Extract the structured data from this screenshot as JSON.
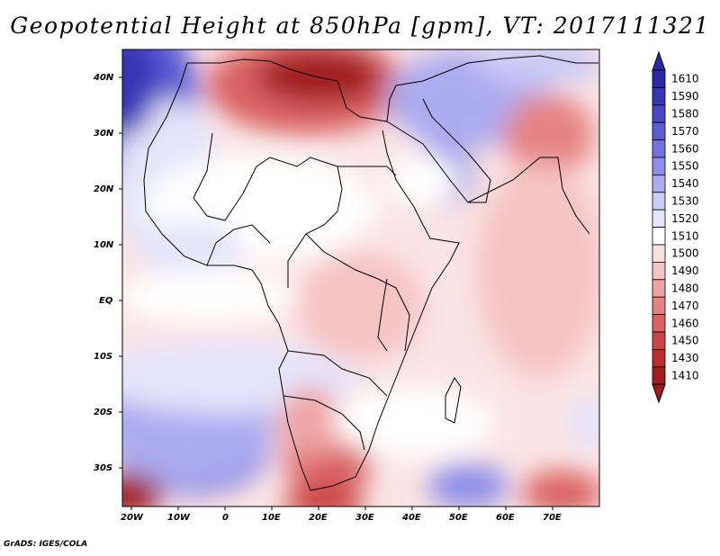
{
  "title": "Geopotential Height at 850hPa [gpm], VT: 2017111321",
  "credit": "GrADS: IGES/COLA",
  "map": {
    "lat_labels": [
      "40N",
      "30N",
      "20N",
      "10N",
      "EQ",
      "10S",
      "20S",
      "30S"
    ],
    "lon_labels": [
      "20W",
      "10W",
      "0",
      "10E",
      "20E",
      "30E",
      "40E",
      "50E",
      "60E",
      "70E"
    ]
  },
  "colorbar": {
    "levels": [
      "1610",
      "1590",
      "1580",
      "1570",
      "1560",
      "1550",
      "1540",
      "1530",
      "1520",
      "1510",
      "1500",
      "1490",
      "1480",
      "1470",
      "1460",
      "1450",
      "1430",
      "1410"
    ],
    "colors": [
      "#2b2aa6",
      "#3535b5",
      "#4545c6",
      "#5c5cd4",
      "#7373df",
      "#8e8ee8",
      "#ababf0",
      "#cacaf6",
      "#e4e4fb",
      "#ffffff",
      "#fbe0e0",
      "#f6c3c3",
      "#eea3a3",
      "#e58383",
      "#da6262",
      "#cc4545",
      "#bb2e2e",
      "#a11c1c"
    ]
  }
}
